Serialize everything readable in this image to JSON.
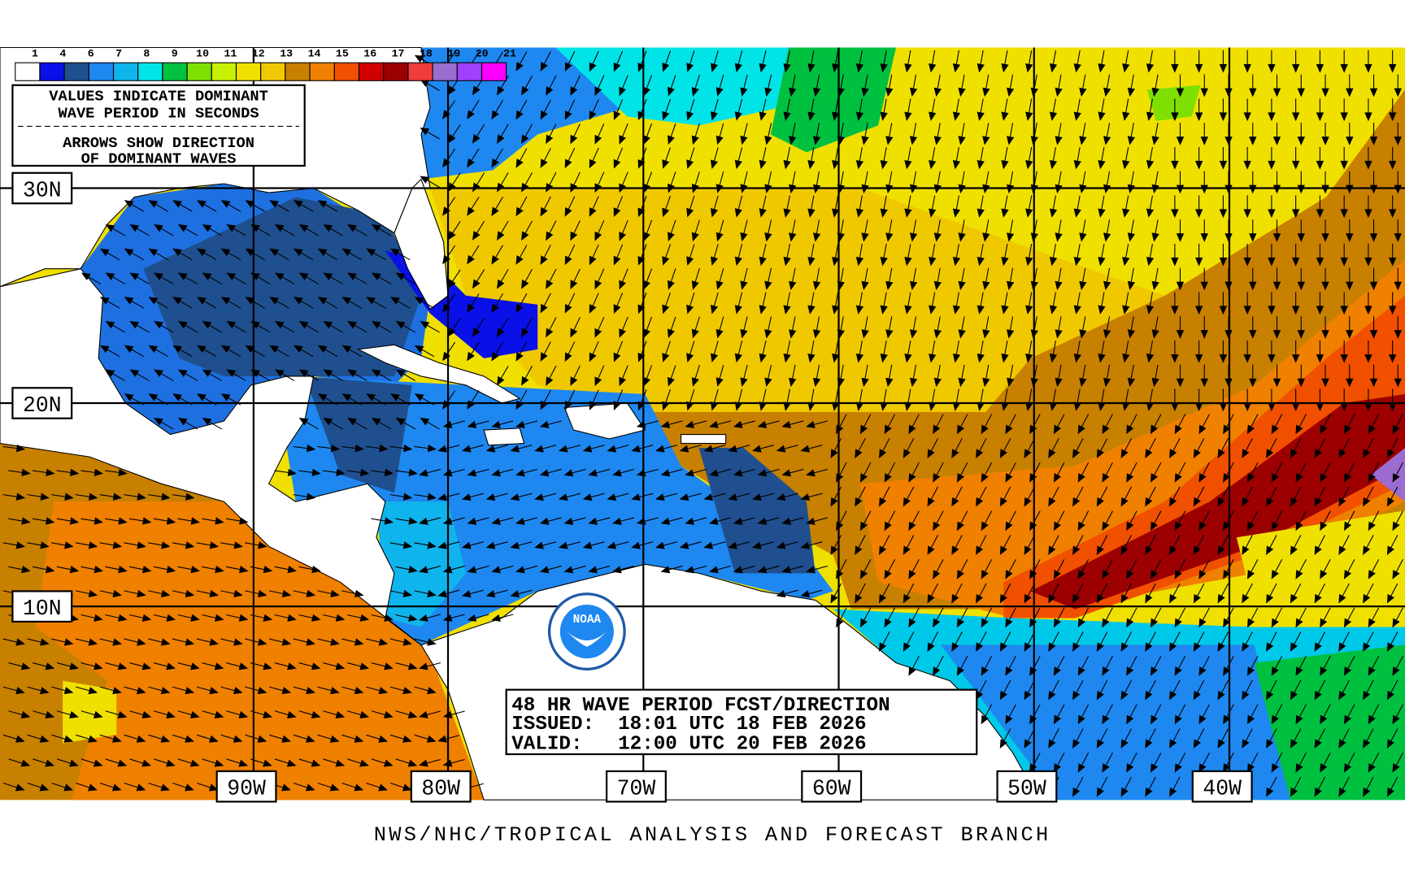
{
  "legend": {
    "labels": [
      1,
      4,
      6,
      7,
      8,
      9,
      10,
      11,
      12,
      13,
      14,
      15,
      16,
      17,
      18,
      19,
      20,
      21
    ],
    "colors": [
      "#ffffff",
      "#0a10e8",
      "#1f4f8e",
      "#1e88f0",
      "#10b4ec",
      "#00e4e8",
      "#00c040",
      "#7ee000",
      "#c8f000",
      "#f0e000",
      "#f0c800",
      "#c88000",
      "#f08000",
      "#f05000",
      "#d00000",
      "#9c0000",
      "#f03c3c",
      "#9a6cd0",
      "#a040ff",
      "#ff00ff"
    ]
  },
  "notes": [
    "VALUES INDICATE DOMINANT",
    "WAVE PERIOD IN SECONDS",
    "ARROWS SHOW DIRECTION",
    "OF DOMINANT WAVES"
  ],
  "latitudes": [
    "30N",
    "20N",
    "10N"
  ],
  "longitudes": [
    "90W",
    "80W",
    "70W",
    "60W",
    "50W",
    "40W"
  ],
  "forecast": {
    "title": "48 HR WAVE PERIOD FCST/DIRECTION",
    "issued": "ISSUED:  18:01 UTC 18 FEB 2026",
    "valid": "VALID:   12:00 UTC 20 FEB 2026"
  },
  "logo": "NOAA",
  "footer": "NWS/NHC/TROPICAL ANALYSIS AND FORECAST BRANCH"
}
